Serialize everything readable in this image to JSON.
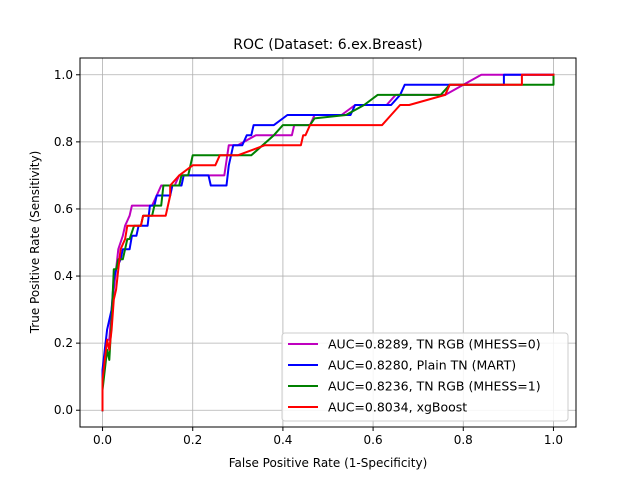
{
  "chart_data": {
    "type": "line",
    "title": "ROC (Dataset: 6.ex.Breast)",
    "xlabel": "False Positive Rate (1-Specificity)",
    "ylabel": "True Positive Rate (Sensitivity)",
    "xlim": [
      -0.05,
      1.05
    ],
    "ylim": [
      -0.05,
      1.05
    ],
    "xticks": [
      0.0,
      0.2,
      0.4,
      0.6,
      0.8,
      1.0
    ],
    "yticks": [
      0.0,
      0.2,
      0.4,
      0.6,
      0.8,
      1.0
    ],
    "xtick_labels": [
      "0.0",
      "0.2",
      "0.4",
      "0.6",
      "0.8",
      "1.0"
    ],
    "ytick_labels": [
      "0.0",
      "0.2",
      "0.4",
      "0.6",
      "0.8",
      "1.0"
    ],
    "grid": true,
    "legend_position": "lower-right",
    "series": [
      {
        "name": "AUC=0.8289, TN RGB (MHESS=0)",
        "color": "#bf00bf",
        "points": [
          [
            0,
            0
          ],
          [
            0,
            0.09
          ],
          [
            0.005,
            0.15
          ],
          [
            0.01,
            0.21
          ],
          [
            0.015,
            0.21
          ],
          [
            0.02,
            0.3
          ],
          [
            0.025,
            0.36
          ],
          [
            0.03,
            0.42
          ],
          [
            0.035,
            0.48
          ],
          [
            0.045,
            0.52
          ],
          [
            0.05,
            0.55
          ],
          [
            0.06,
            0.58
          ],
          [
            0.065,
            0.61
          ],
          [
            0.11,
            0.61
          ],
          [
            0.12,
            0.64
          ],
          [
            0.13,
            0.67
          ],
          [
            0.16,
            0.67
          ],
          [
            0.17,
            0.7
          ],
          [
            0.27,
            0.7
          ],
          [
            0.28,
            0.79
          ],
          [
            0.3,
            0.79
          ],
          [
            0.34,
            0.82
          ],
          [
            0.42,
            0.82
          ],
          [
            0.425,
            0.85
          ],
          [
            0.46,
            0.85
          ],
          [
            0.47,
            0.88
          ],
          [
            0.53,
            0.88
          ],
          [
            0.56,
            0.91
          ],
          [
            0.63,
            0.91
          ],
          [
            0.65,
            0.94
          ],
          [
            0.76,
            0.94
          ],
          [
            0.84,
            1.0
          ],
          [
            1.0,
            1.0
          ]
        ]
      },
      {
        "name": "AUC=0.8280, Plain TN (MART)",
        "color": "#0000ff",
        "points": [
          [
            0,
            0
          ],
          [
            0,
            0.12
          ],
          [
            0.005,
            0.18
          ],
          [
            0.01,
            0.24
          ],
          [
            0.02,
            0.3
          ],
          [
            0.025,
            0.39
          ],
          [
            0.03,
            0.42
          ],
          [
            0.04,
            0.45
          ],
          [
            0.045,
            0.48
          ],
          [
            0.06,
            0.48
          ],
          [
            0.065,
            0.52
          ],
          [
            0.075,
            0.52
          ],
          [
            0.08,
            0.55
          ],
          [
            0.1,
            0.55
          ],
          [
            0.105,
            0.61
          ],
          [
            0.115,
            0.61
          ],
          [
            0.12,
            0.64
          ],
          [
            0.15,
            0.64
          ],
          [
            0.155,
            0.67
          ],
          [
            0.175,
            0.67
          ],
          [
            0.18,
            0.7
          ],
          [
            0.235,
            0.7
          ],
          [
            0.24,
            0.67
          ],
          [
            0.275,
            0.67
          ],
          [
            0.28,
            0.73
          ],
          [
            0.29,
            0.79
          ],
          [
            0.31,
            0.79
          ],
          [
            0.32,
            0.82
          ],
          [
            0.33,
            0.82
          ],
          [
            0.335,
            0.85
          ],
          [
            0.38,
            0.85
          ],
          [
            0.41,
            0.88
          ],
          [
            0.55,
            0.88
          ],
          [
            0.56,
            0.91
          ],
          [
            0.64,
            0.91
          ],
          [
            0.66,
            0.94
          ],
          [
            0.67,
            0.97
          ],
          [
            0.89,
            0.97
          ],
          [
            0.89,
            1.0
          ],
          [
            1.0,
            1.0
          ]
        ]
      },
      {
        "name": "AUC=0.8236, TN RGB (MHESS=1)",
        "color": "#008000",
        "points": [
          [
            0,
            0
          ],
          [
            0,
            0.06
          ],
          [
            0.005,
            0.12
          ],
          [
            0.01,
            0.18
          ],
          [
            0.015,
            0.15
          ],
          [
            0.02,
            0.27
          ],
          [
            0.025,
            0.42
          ],
          [
            0.03,
            0.42
          ],
          [
            0.035,
            0.45
          ],
          [
            0.045,
            0.45
          ],
          [
            0.05,
            0.48
          ],
          [
            0.055,
            0.51
          ],
          [
            0.06,
            0.51
          ],
          [
            0.07,
            0.55
          ],
          [
            0.085,
            0.55
          ],
          [
            0.09,
            0.58
          ],
          [
            0.11,
            0.58
          ],
          [
            0.115,
            0.61
          ],
          [
            0.13,
            0.61
          ],
          [
            0.135,
            0.67
          ],
          [
            0.17,
            0.67
          ],
          [
            0.175,
            0.7
          ],
          [
            0.19,
            0.7
          ],
          [
            0.2,
            0.76
          ],
          [
            0.33,
            0.76
          ],
          [
            0.38,
            0.82
          ],
          [
            0.4,
            0.85
          ],
          [
            0.46,
            0.85
          ],
          [
            0.47,
            0.87
          ],
          [
            0.54,
            0.88
          ],
          [
            0.58,
            0.91
          ],
          [
            0.61,
            0.94
          ],
          [
            0.75,
            0.94
          ],
          [
            0.77,
            0.97
          ],
          [
            0.91,
            0.97
          ],
          [
            1.0,
            0.97
          ],
          [
            1.0,
            1.0
          ]
        ]
      },
      {
        "name": "AUC=0.8034, xgBoost",
        "color": "#ff0000",
        "points": [
          [
            0,
            0
          ],
          [
            0,
            0.09
          ],
          [
            0.005,
            0.15
          ],
          [
            0.01,
            0.21
          ],
          [
            0.015,
            0.18
          ],
          [
            0.02,
            0.24
          ],
          [
            0.025,
            0.33
          ],
          [
            0.03,
            0.36
          ],
          [
            0.035,
            0.42
          ],
          [
            0.04,
            0.48
          ],
          [
            0.05,
            0.51
          ],
          [
            0.055,
            0.55
          ],
          [
            0.085,
            0.55
          ],
          [
            0.09,
            0.58
          ],
          [
            0.14,
            0.58
          ],
          [
            0.15,
            0.64
          ],
          [
            0.15,
            0.67
          ],
          [
            0.17,
            0.7
          ],
          [
            0.2,
            0.73
          ],
          [
            0.25,
            0.73
          ],
          [
            0.26,
            0.76
          ],
          [
            0.3,
            0.76
          ],
          [
            0.36,
            0.79
          ],
          [
            0.44,
            0.79
          ],
          [
            0.445,
            0.82
          ],
          [
            0.45,
            0.82
          ],
          [
            0.46,
            0.85
          ],
          [
            0.62,
            0.85
          ],
          [
            0.64,
            0.88
          ],
          [
            0.66,
            0.91
          ],
          [
            0.68,
            0.91
          ],
          [
            0.76,
            0.94
          ],
          [
            0.77,
            0.97
          ],
          [
            0.93,
            0.97
          ],
          [
            0.93,
            1.0
          ],
          [
            1.0,
            1.0
          ]
        ]
      }
    ]
  }
}
